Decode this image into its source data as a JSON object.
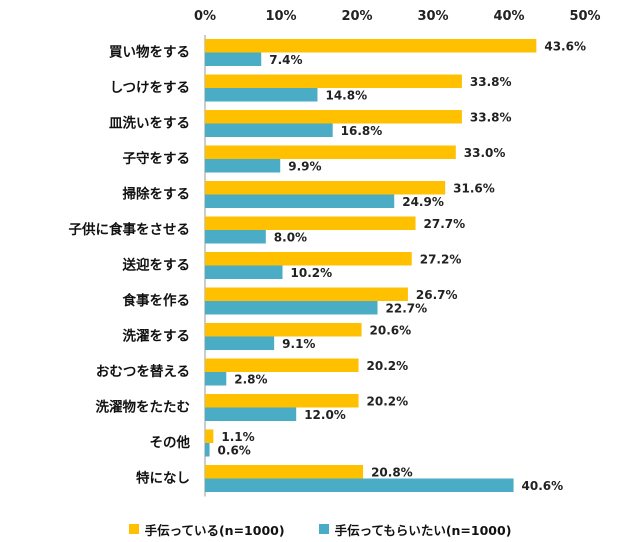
{
  "chart_data": {
    "type": "bar",
    "orientation": "horizontal",
    "categories": [
      "買い物をする",
      "しつけをする",
      "皿洗いをする",
      "子守をする",
      "掃除をする",
      "子供に食事をさせる",
      "送迎をする",
      "食事を作る",
      "洗濯をする",
      "おむつを替える",
      "洗濯物をたたむ",
      "その他",
      "特になし"
    ],
    "series": [
      {
        "name": "手伝っている(n=1000)",
        "color": "#FFC000",
        "values": [
          43.6,
          33.8,
          33.8,
          33.0,
          31.6,
          27.7,
          27.2,
          26.7,
          20.6,
          20.2,
          20.2,
          1.1,
          20.8
        ]
      },
      {
        "name": "手伝ってもらいたい(n=1000)",
        "color": "#4BACC6",
        "values": [
          7.4,
          14.8,
          16.8,
          9.9,
          24.9,
          8.0,
          10.2,
          22.7,
          9.1,
          2.8,
          12.0,
          0.6,
          40.6
        ]
      }
    ],
    "xlim": [
      0,
      50
    ],
    "ticks": [
      "0%",
      "10%",
      "20%",
      "30%",
      "40%",
      "50%"
    ],
    "grid": false,
    "legend": "bottom"
  }
}
